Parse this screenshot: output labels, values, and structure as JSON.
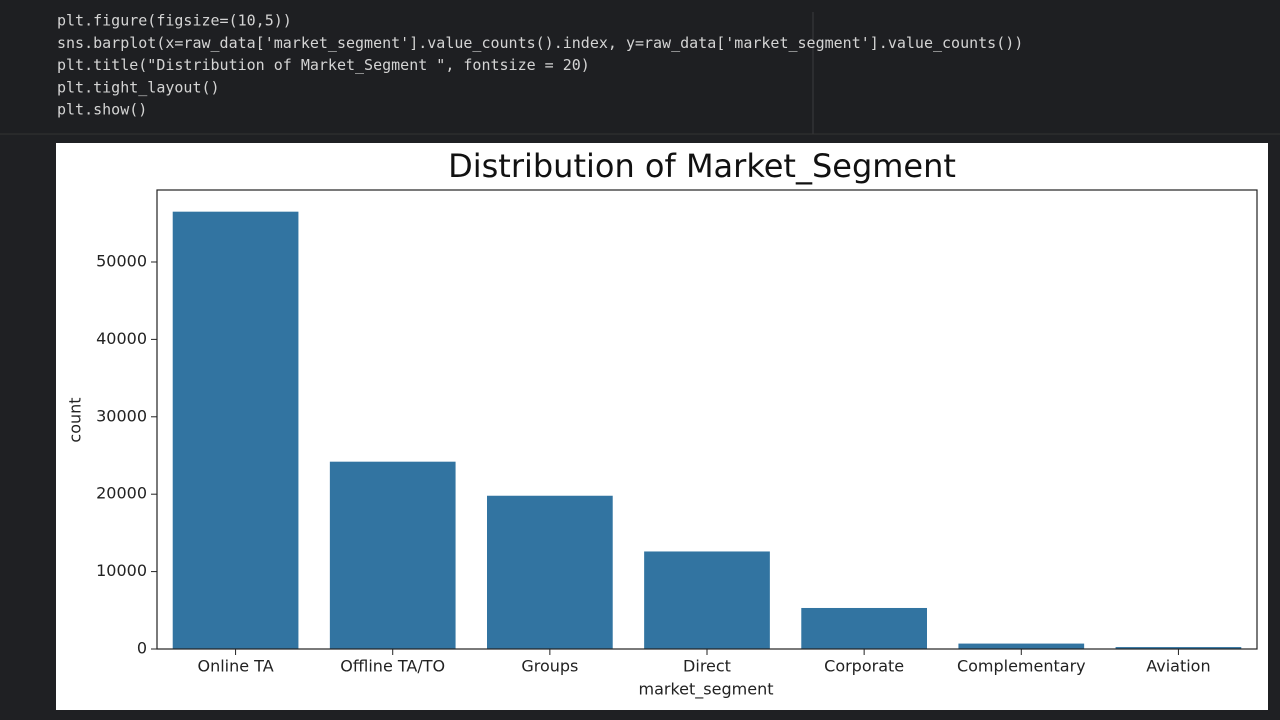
{
  "code": {
    "lines": [
      "plt.figure(figsize=(10,5))",
      "sns.barplot(x=raw_data['market_segment'].value_counts().index, y=raw_data['market_segment'].value_counts())",
      "plt.title(\"Distribution of Market_Segment \", fontsize = 20)",
      "plt.tight_layout()",
      "plt.show()"
    ]
  },
  "chart_data": {
    "type": "bar",
    "title": "Distribution of Market_Segment",
    "x_label": "market_segment",
    "y_label": "count",
    "categories": [
      "Online TA",
      "Offline TA/TO",
      "Groups",
      "Direct",
      "Corporate",
      "Complementary",
      "Aviation"
    ],
    "values": [
      56500,
      24200,
      19800,
      12600,
      5300,
      700,
      250
    ],
    "color": "#3274a1",
    "ylim": [
      0,
      59300
    ],
    "yticks": [
      0,
      10000,
      20000,
      30000,
      40000,
      50000
    ],
    "grid": false
  }
}
